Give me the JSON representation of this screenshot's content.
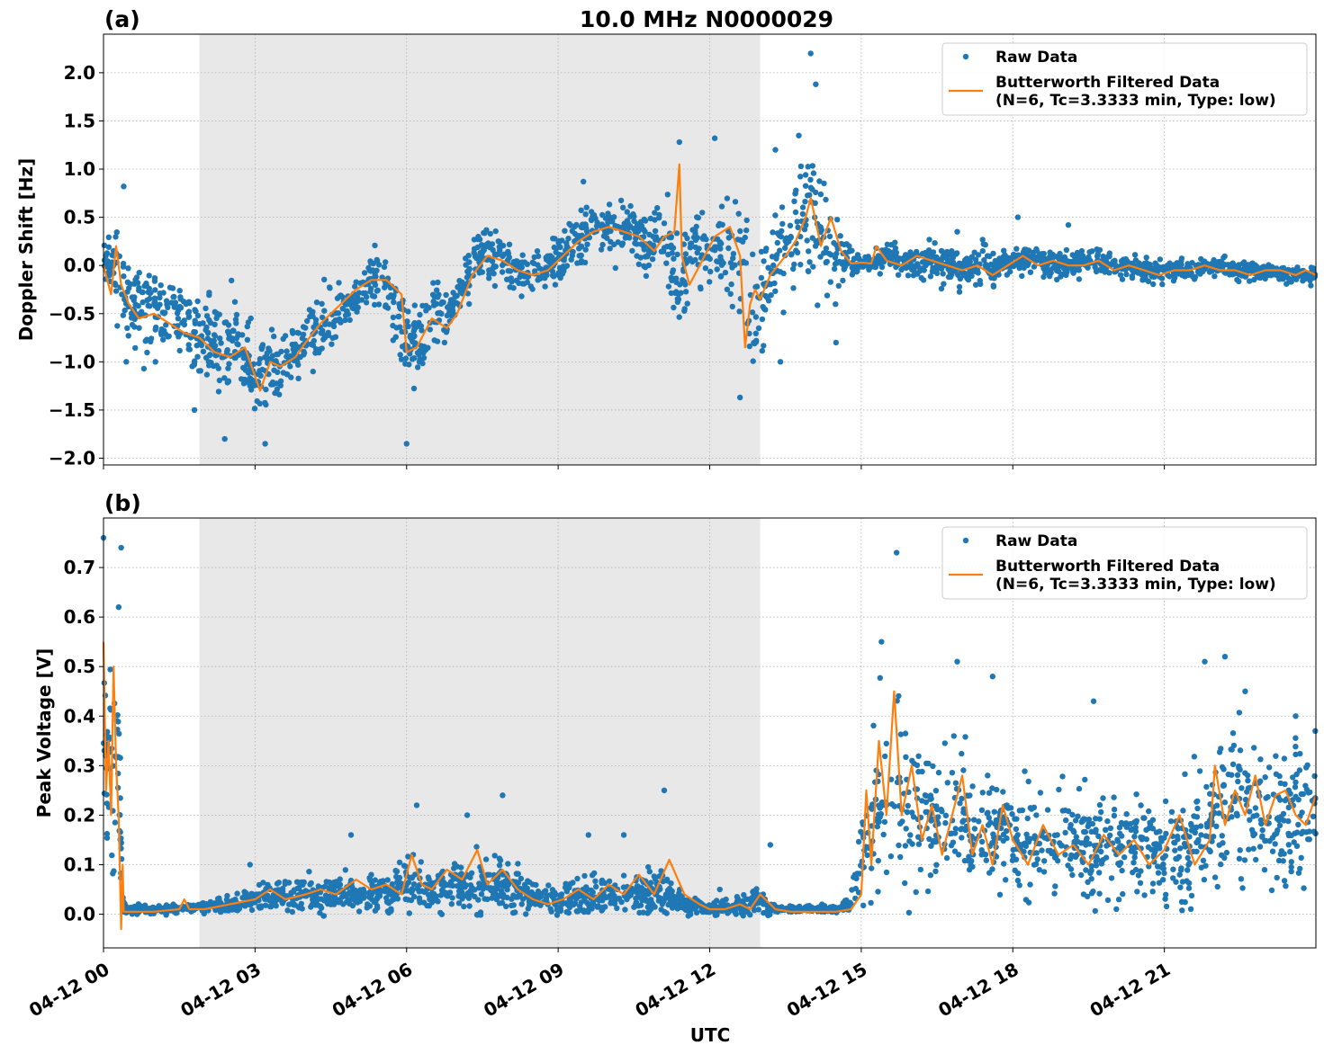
{
  "figure_title": "10.0 MHz N0000029",
  "xlabel": "UTC",
  "colors": {
    "raw": "#1f77b4",
    "filtered": "#ff7f0e",
    "night_shade": "#e8e8e8",
    "grid": "#b0b0b0"
  },
  "chart_data": [
    {
      "type": "scatter",
      "panel_label": "(a)",
      "title": "10.0 MHz N0000029",
      "ylabel": "Doppler Shift [Hz]",
      "xlabel": "",
      "ylim": [
        -2.07,
        2.4
      ],
      "yticks": [
        -2.0,
        -1.5,
        -1.0,
        -0.5,
        0.0,
        0.5,
        1.0,
        1.5,
        2.0
      ],
      "ytick_labels": [
        "−2.0",
        "−1.5",
        "−1.0",
        "−0.5",
        "0.0",
        "0.5",
        "1.0",
        "1.5",
        "2.0"
      ],
      "xlim_hours": [
        0,
        24
      ],
      "shaded_region_hours": [
        1.9,
        13.0
      ],
      "grid": true,
      "legend_position": "top-right",
      "legend": [
        "Raw Data",
        "Butterworth Filtered Data",
        "(N=6, Tc=3.3333 min, Type: low)"
      ],
      "series": [
        {
          "name": "Raw Data",
          "kind": "points",
          "x_hours": [
            0.0,
            0.25,
            0.4,
            0.5,
            1.0,
            1.5,
            1.8,
            2.2,
            2.4,
            2.7,
            3.0,
            3.2,
            3.5,
            3.8,
            4.0,
            4.5,
            5.0,
            5.3,
            5.6,
            6.0,
            6.3,
            6.5,
            6.8,
            7.0,
            7.3,
            7.6,
            8.0,
            8.5,
            9.0,
            9.5,
            10.0,
            10.5,
            10.8,
            11.1,
            11.4,
            11.6,
            11.9,
            12.2,
            12.5,
            12.7,
            12.85,
            13.0,
            13.3,
            13.6,
            13.9,
            14.1,
            14.3,
            14.6,
            15.0,
            15.3,
            15.5,
            16.0,
            16.5,
            17.0,
            17.4,
            17.7,
            18.0,
            18.5,
            19.0,
            19.5,
            20.0,
            20.5,
            21.0,
            21.5,
            22.0,
            22.5,
            23.0,
            23.5,
            24.0
          ],
          "center": [
            0.0,
            0.1,
            -0.2,
            -0.4,
            -0.45,
            -0.55,
            -0.7,
            -0.8,
            -0.9,
            -0.85,
            -1.2,
            -1.0,
            -1.1,
            -0.95,
            -0.75,
            -0.55,
            -0.3,
            -0.15,
            -0.25,
            -0.85,
            -0.75,
            -0.55,
            -0.6,
            -0.35,
            0.0,
            0.15,
            0.0,
            -0.1,
            0.05,
            0.3,
            0.4,
            0.35,
            0.2,
            0.35,
            -0.25,
            0.1,
            0.3,
            0.1,
            0.2,
            -0.05,
            -0.6,
            -0.5,
            0.05,
            0.2,
            0.55,
            0.55,
            0.25,
            0.0,
            0.02,
            0.05,
            0.15,
            0.0,
            0.05,
            -0.05,
            0.05,
            -0.05,
            0.05,
            0.05,
            0.0,
            0.05,
            0.0,
            -0.05,
            -0.05,
            -0.05,
            -0.02,
            -0.05,
            -0.05,
            -0.1,
            -0.12
          ],
          "spread": [
            0.12,
            0.35,
            0.4,
            0.35,
            0.35,
            0.35,
            0.35,
            0.4,
            0.45,
            0.4,
            0.45,
            0.4,
            0.35,
            0.35,
            0.3,
            0.25,
            0.25,
            0.25,
            0.3,
            0.35,
            0.35,
            0.3,
            0.3,
            0.25,
            0.25,
            0.25,
            0.2,
            0.2,
            0.2,
            0.25,
            0.25,
            0.25,
            0.3,
            0.35,
            0.4,
            0.35,
            0.35,
            0.35,
            0.45,
            0.55,
            0.6,
            0.45,
            0.45,
            0.5,
            0.6,
            0.6,
            0.5,
            0.2,
            0.05,
            0.1,
            0.12,
            0.15,
            0.15,
            0.15,
            0.18,
            0.15,
            0.12,
            0.12,
            0.12,
            0.12,
            0.1,
            0.1,
            0.1,
            0.08,
            0.08,
            0.08,
            0.08,
            0.08,
            0.08
          ],
          "peaks": [
            [
              0.4,
              0.82
            ],
            [
              0.45,
              -1.0
            ],
            [
              1.8,
              -1.5
            ],
            [
              2.4,
              -1.8
            ],
            [
              3.2,
              -1.85
            ],
            [
              6.0,
              -1.85
            ],
            [
              9.5,
              0.87
            ],
            [
              11.4,
              1.28
            ],
            [
              12.1,
              1.32
            ],
            [
              12.6,
              -1.37
            ],
            [
              13.3,
              1.2
            ],
            [
              14.0,
              2.2
            ],
            [
              14.1,
              1.88
            ],
            [
              13.4,
              -1.0
            ],
            [
              14.5,
              -0.8
            ],
            [
              16.9,
              0.35
            ],
            [
              18.1,
              0.5
            ],
            [
              19.1,
              0.42
            ]
          ]
        },
        {
          "name": "Butterworth Filtered Data",
          "kind": "line",
          "x_hours": [
            0.0,
            0.15,
            0.25,
            0.35,
            0.5,
            0.7,
            1.0,
            1.3,
            1.6,
            1.9,
            2.2,
            2.5,
            2.8,
            3.1,
            3.3,
            3.5,
            3.8,
            4.0,
            4.3,
            4.6,
            5.0,
            5.3,
            5.6,
            5.9,
            6.0,
            6.2,
            6.5,
            6.8,
            7.0,
            7.3,
            7.6,
            7.9,
            8.2,
            8.5,
            8.8,
            9.1,
            9.4,
            9.7,
            10.0,
            10.3,
            10.6,
            10.9,
            11.1,
            11.3,
            11.4,
            11.45,
            11.6,
            11.8,
            12.1,
            12.4,
            12.6,
            12.7,
            12.8,
            12.9,
            13.0,
            13.2,
            13.5,
            13.7,
            13.9,
            14.0,
            14.2,
            14.4,
            14.6,
            14.8,
            15.0,
            15.2,
            15.3,
            15.5,
            15.8,
            16.1,
            16.4,
            16.7,
            17.0,
            17.3,
            17.6,
            17.9,
            18.2,
            18.5,
            18.8,
            19.1,
            19.4,
            19.7,
            20.0,
            20.3,
            20.6,
            20.9,
            21.2,
            21.5,
            21.8,
            22.1,
            22.4,
            22.7,
            23.0,
            23.3,
            23.6,
            23.8,
            24.0
          ],
          "y": [
            0.0,
            -0.3,
            0.2,
            -0.2,
            -0.4,
            -0.55,
            -0.5,
            -0.6,
            -0.7,
            -0.75,
            -0.9,
            -0.95,
            -0.85,
            -1.3,
            -1.0,
            -1.05,
            -0.95,
            -0.8,
            -0.6,
            -0.45,
            -0.25,
            -0.15,
            -0.15,
            -0.3,
            -0.9,
            -0.85,
            -0.55,
            -0.65,
            -0.5,
            -0.1,
            0.1,
            0.05,
            -0.05,
            -0.1,
            -0.05,
            0.1,
            0.25,
            0.35,
            0.4,
            0.35,
            0.3,
            0.15,
            0.3,
            0.35,
            1.05,
            0.1,
            -0.2,
            0.0,
            0.3,
            0.4,
            0.1,
            -0.85,
            -0.4,
            -0.25,
            -0.35,
            -0.1,
            0.1,
            0.25,
            0.5,
            0.7,
            0.2,
            0.5,
            0.15,
            0.02,
            0.03,
            0.02,
            0.2,
            0.05,
            0.0,
            0.1,
            0.05,
            0.0,
            -0.05,
            0.0,
            -0.1,
            0.0,
            0.1,
            0.0,
            0.05,
            0.0,
            0.0,
            0.05,
            -0.05,
            0.0,
            -0.05,
            -0.1,
            -0.05,
            -0.05,
            0.0,
            -0.05,
            -0.05,
            -0.1,
            -0.05,
            -0.05,
            -0.1,
            -0.05,
            -0.1
          ]
        }
      ]
    },
    {
      "type": "scatter",
      "panel_label": "(b)",
      "title": "",
      "ylabel": "Peak Voltage [V]",
      "xlabel": "UTC",
      "ylim": [
        -0.068,
        0.8
      ],
      "yticks": [
        0.0,
        0.1,
        0.2,
        0.3,
        0.4,
        0.5,
        0.6,
        0.7
      ],
      "ytick_labels": [
        "0.0",
        "0.1",
        "0.2",
        "0.3",
        "0.4",
        "0.5",
        "0.6",
        "0.7"
      ],
      "xlim_hours": [
        0,
        24
      ],
      "xticks_hours": [
        0,
        3,
        6,
        9,
        12,
        15,
        18,
        21
      ],
      "xtick_labels": [
        "04-12 00",
        "04-12 03",
        "04-12 06",
        "04-12 09",
        "04-12 12",
        "04-12 15",
        "04-12 18",
        "04-12 21"
      ],
      "shaded_region_hours": [
        1.9,
        13.0
      ],
      "grid": true,
      "legend_position": "top-right",
      "legend": [
        "Raw Data",
        "Butterworth Filtered Data",
        "(N=6, Tc=3.3333 min, Type: low)"
      ],
      "series": [
        {
          "name": "Raw Data",
          "kind": "points",
          "x_hours": [
            0.0,
            0.1,
            0.2,
            0.3,
            0.35,
            0.4,
            0.5,
            1.0,
            1.5,
            2.0,
            2.5,
            3.0,
            3.5,
            4.0,
            4.5,
            5.0,
            5.5,
            6.0,
            6.5,
            7.0,
            7.5,
            8.0,
            8.5,
            9.0,
            9.5,
            10.0,
            10.5,
            11.0,
            11.5,
            12.0,
            12.5,
            12.9,
            13.2,
            13.5,
            14.0,
            14.5,
            14.8,
            15.0,
            15.3,
            15.6,
            15.9,
            16.3,
            16.7,
            17.0,
            17.4,
            17.7,
            18.0,
            18.5,
            19.0,
            19.5,
            20.0,
            20.5,
            21.0,
            21.5,
            22.0,
            22.5,
            23.0,
            23.5,
            24.0
          ],
          "center": [
            0.4,
            0.3,
            0.25,
            0.3,
            0.1,
            0.01,
            0.01,
            0.01,
            0.01,
            0.015,
            0.02,
            0.03,
            0.04,
            0.04,
            0.04,
            0.04,
            0.04,
            0.06,
            0.05,
            0.06,
            0.05,
            0.06,
            0.03,
            0.025,
            0.04,
            0.03,
            0.035,
            0.05,
            0.02,
            0.01,
            0.015,
            0.03,
            0.01,
            0.01,
            0.01,
            0.01,
            0.02,
            0.15,
            0.2,
            0.25,
            0.22,
            0.2,
            0.18,
            0.2,
            0.15,
            0.17,
            0.15,
            0.14,
            0.15,
            0.13,
            0.14,
            0.14,
            0.13,
            0.15,
            0.2,
            0.22,
            0.2,
            0.2,
            0.22
          ],
          "spread": [
            0.2,
            0.25,
            0.2,
            0.2,
            0.1,
            0.01,
            0.008,
            0.008,
            0.008,
            0.01,
            0.015,
            0.025,
            0.03,
            0.035,
            0.03,
            0.035,
            0.03,
            0.05,
            0.04,
            0.05,
            0.045,
            0.045,
            0.03,
            0.025,
            0.035,
            0.03,
            0.035,
            0.045,
            0.015,
            0.01,
            0.015,
            0.03,
            0.01,
            0.005,
            0.005,
            0.005,
            0.015,
            0.1,
            0.12,
            0.15,
            0.14,
            0.12,
            0.12,
            0.12,
            0.1,
            0.1,
            0.1,
            0.1,
            0.1,
            0.09,
            0.1,
            0.1,
            0.1,
            0.1,
            0.13,
            0.13,
            0.13,
            0.12,
            0.13
          ],
          "peaks": [
            [
              0.0,
              0.76
            ],
            [
              0.35,
              0.74
            ],
            [
              0.3,
              0.62
            ],
            [
              2.9,
              0.1
            ],
            [
              4.9,
              0.16
            ],
            [
              6.2,
              0.22
            ],
            [
              7.2,
              0.2
            ],
            [
              7.9,
              0.24
            ],
            [
              9.6,
              0.16
            ],
            [
              10.3,
              0.16
            ],
            [
              11.1,
              0.25
            ],
            [
              12.2,
              0.05
            ],
            [
              13.2,
              0.14
            ],
            [
              15.7,
              0.73
            ],
            [
              15.4,
              0.55
            ],
            [
              16.9,
              0.51
            ],
            [
              17.6,
              0.48
            ],
            [
              19.6,
              0.43
            ],
            [
              21.8,
              0.51
            ],
            [
              22.2,
              0.52
            ],
            [
              22.6,
              0.45
            ],
            [
              23.6,
              0.4
            ]
          ]
        },
        {
          "name": "Butterworth Filtered Data",
          "kind": "line",
          "x_hours": [
            0.0,
            0.05,
            0.1,
            0.15,
            0.2,
            0.25,
            0.3,
            0.35,
            0.38,
            0.4,
            0.45,
            0.6,
            1.0,
            1.5,
            1.6,
            1.7,
            2.0,
            2.5,
            3.0,
            3.3,
            3.6,
            4.0,
            4.3,
            4.6,
            5.0,
            5.3,
            5.6,
            5.9,
            6.1,
            6.3,
            6.5,
            6.8,
            7.1,
            7.4,
            7.6,
            7.9,
            8.2,
            8.5,
            8.8,
            9.1,
            9.4,
            9.7,
            10.0,
            10.3,
            10.6,
            10.9,
            11.2,
            11.5,
            11.8,
            12.0,
            12.3,
            12.6,
            12.8,
            13.0,
            13.3,
            13.6,
            14.0,
            14.5,
            14.8,
            15.0,
            15.1,
            15.2,
            15.35,
            15.5,
            15.65,
            15.8,
            16.0,
            16.2,
            16.4,
            16.6,
            16.8,
            17.0,
            17.2,
            17.4,
            17.6,
            17.8,
            18.0,
            18.3,
            18.6,
            18.9,
            19.2,
            19.5,
            19.8,
            20.1,
            20.4,
            20.7,
            21.0,
            21.3,
            21.6,
            21.9,
            22.0,
            22.2,
            22.4,
            22.6,
            22.8,
            23.0,
            23.2,
            23.4,
            23.6,
            23.8,
            24.0
          ],
          "y": [
            0.55,
            0.25,
            0.35,
            0.2,
            0.5,
            0.3,
            0.2,
            -0.03,
            0.1,
            0.005,
            0.005,
            0.005,
            0.005,
            0.01,
            0.03,
            0.01,
            0.01,
            0.02,
            0.03,
            0.05,
            0.03,
            0.04,
            0.05,
            0.04,
            0.07,
            0.05,
            0.06,
            0.04,
            0.12,
            0.06,
            0.05,
            0.09,
            0.07,
            0.13,
            0.06,
            0.09,
            0.05,
            0.03,
            0.02,
            0.03,
            0.05,
            0.03,
            0.06,
            0.04,
            0.08,
            0.04,
            0.11,
            0.04,
            0.02,
            0.01,
            0.01,
            0.02,
            0.01,
            0.04,
            0.01,
            0.005,
            0.005,
            0.005,
            0.01,
            0.04,
            0.25,
            0.1,
            0.35,
            0.2,
            0.45,
            0.2,
            0.3,
            0.15,
            0.22,
            0.12,
            0.2,
            0.28,
            0.12,
            0.18,
            0.1,
            0.22,
            0.15,
            0.1,
            0.18,
            0.12,
            0.14,
            0.1,
            0.16,
            0.12,
            0.15,
            0.1,
            0.13,
            0.2,
            0.1,
            0.15,
            0.3,
            0.18,
            0.25,
            0.2,
            0.28,
            0.18,
            0.24,
            0.25,
            0.2,
            0.18,
            0.24
          ]
        }
      ]
    }
  ]
}
